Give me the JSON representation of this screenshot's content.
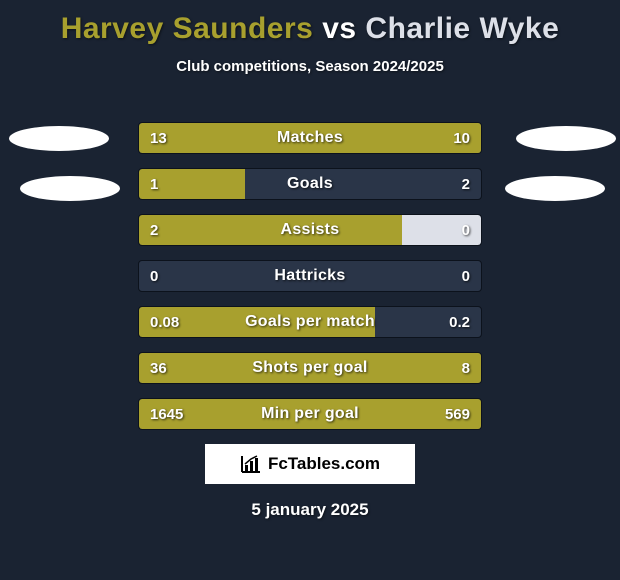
{
  "colors": {
    "background": "#1a2332",
    "player1": "#a8a02e",
    "player2": "#dde0e8",
    "bar_track": "#2a3548",
    "bar_border": "#0c121c",
    "text": "#ffffff",
    "oval": "#ffffff"
  },
  "title": {
    "player1": "Harvey Saunders",
    "vs": "vs",
    "player2": "Charlie Wyke"
  },
  "subtitle": "Club competitions, Season 2024/2025",
  "stats": [
    {
      "label": "Matches",
      "left_value": "13",
      "right_value": "10",
      "left_pct": 1.0,
      "right_pct": 0.0
    },
    {
      "label": "Goals",
      "left_value": "1",
      "right_value": "2",
      "left_pct": 0.31,
      "right_pct": 0.0
    },
    {
      "label": "Assists",
      "left_value": "2",
      "right_value": "0",
      "left_pct": 0.77,
      "right_pct": 0.23
    },
    {
      "label": "Hattricks",
      "left_value": "0",
      "right_value": "0",
      "left_pct": 0.0,
      "right_pct": 0.0
    },
    {
      "label": "Goals per match",
      "left_value": "0.08",
      "right_value": "0.2",
      "left_pct": 0.69,
      "right_pct": 0.0
    },
    {
      "label": "Shots per goal",
      "left_value": "36",
      "right_value": "8",
      "left_pct": 1.0,
      "right_pct": 0.0
    },
    {
      "label": "Min per goal",
      "left_value": "1645",
      "right_value": "569",
      "left_pct": 1.0,
      "right_pct": 0.0
    }
  ],
  "logo": {
    "text": "FcTables.com"
  },
  "date": "5 january 2025"
}
